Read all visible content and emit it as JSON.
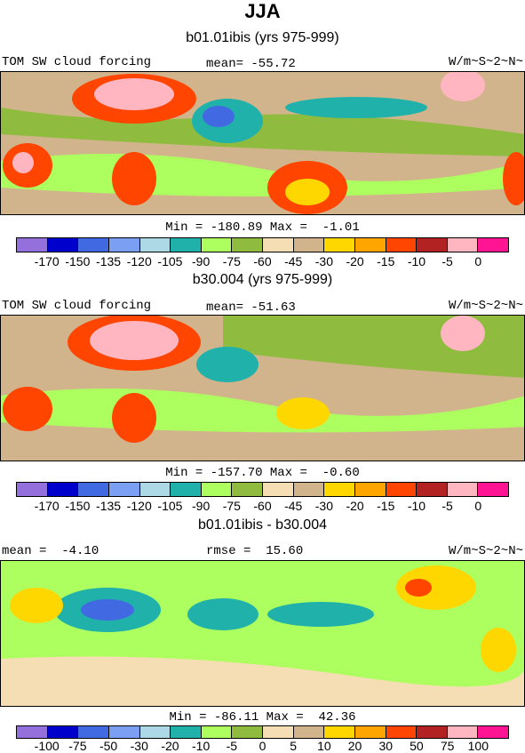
{
  "title": "JJA",
  "panels": [
    {
      "subtitle": "b01.01ibis (yrs 975-999)",
      "left_label": "TOM SW cloud forcing",
      "mid_label": "mean= -55.72",
      "right_label": "W/m~S~2~N~",
      "minmax": "Min = -180.89 Max =  -1.01",
      "colorbar": "abs"
    },
    {
      "subtitle": "b30.004 (yrs 975-999)",
      "left_label": "TOM SW cloud forcing",
      "mid_label": "mean= -51.63",
      "right_label": "W/m~S~2~N~",
      "minmax": "Min = -157.70 Max =  -0.60",
      "colorbar": "abs"
    },
    {
      "subtitle": "b01.01ibis - b30.004",
      "left_label": "mean =  -4.10",
      "mid_label": "rmse =  15.60",
      "right_label": "W/m~S~2~N~",
      "minmax": "Min = -86.11 Max =  42.36",
      "colorbar": "diff"
    }
  ],
  "chart_data": {
    "type": "heatmap",
    "colors": [
      "#9370db",
      "#0000cd",
      "#4169e1",
      "#7b9ff2",
      "#add8e6",
      "#20b2aa",
      "#adff5f",
      "#8fbc3f",
      "#f5deb3",
      "#d2b48c",
      "#ffd700",
      "#ffa500",
      "#ff4500",
      "#b22222",
      "#ffb6c1",
      "#ff1493"
    ],
    "abs_ticks": [
      "-170",
      "-150",
      "-135",
      "-120",
      "-105",
      "-90",
      "-75",
      "-60",
      "-45",
      "-30",
      "-20",
      "-15",
      "-10",
      "-5",
      "0"
    ],
    "diff_ticks": [
      "-100",
      "-75",
      "-50",
      "-30",
      "-20",
      "-10",
      "-5",
      "0",
      "5",
      "10",
      "20",
      "30",
      "50",
      "75",
      "100"
    ]
  }
}
